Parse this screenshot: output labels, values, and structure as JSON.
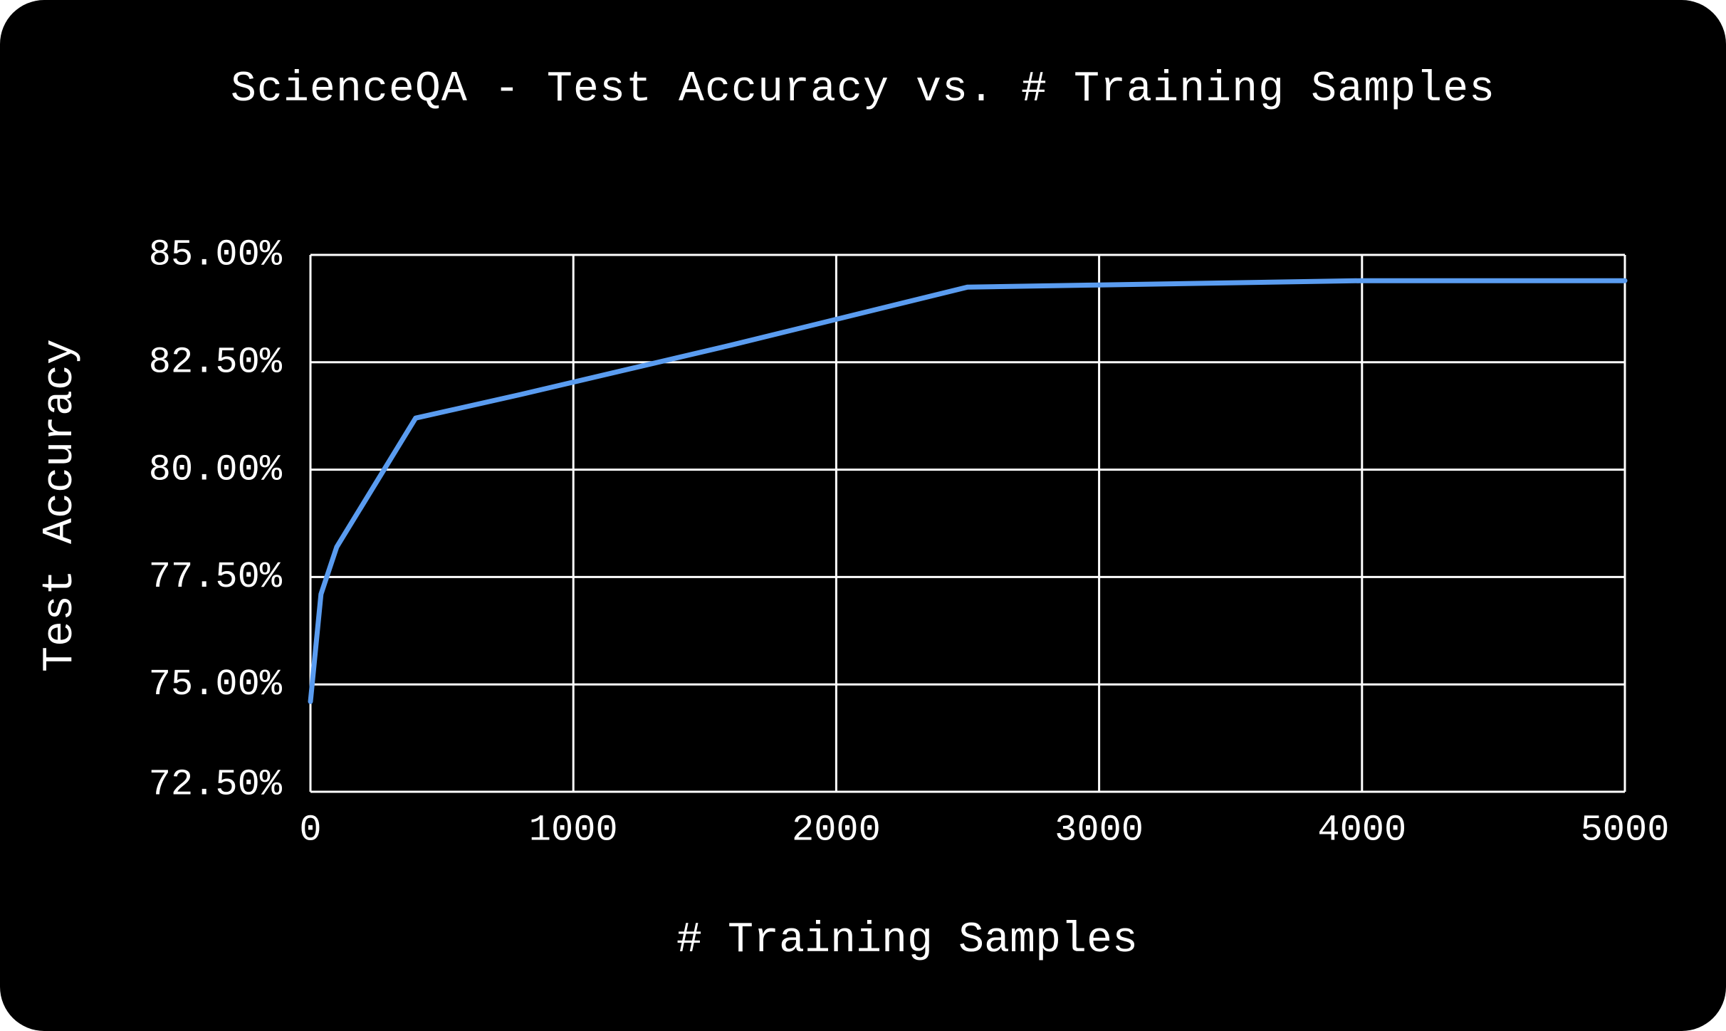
{
  "chart_data": {
    "type": "line",
    "title": "ScienceQA - Test Accuracy vs. # Training Samples",
    "xlabel": "# Training Samples",
    "ylabel": "Test Accuracy",
    "xlim": [
      0,
      5000
    ],
    "ylim": [
      72.5,
      85.0
    ],
    "x_ticks": [
      0,
      1000,
      2000,
      3000,
      4000,
      5000
    ],
    "x_tick_labels": [
      "0",
      "1000",
      "2000",
      "3000",
      "4000",
      "5000"
    ],
    "y_ticks": [
      85.0,
      82.5,
      80.0,
      77.5,
      75.0,
      72.5
    ],
    "y_tick_labels": [
      "85.00%",
      "82.50%",
      "80.00%",
      "77.50%",
      "75.00%",
      "72.50%"
    ],
    "grid": true,
    "line_color": "#5a9cf0",
    "grid_color": "#ffffff",
    "background": "#000000",
    "series": [
      {
        "x": [
          0,
          40,
          100,
          400,
          800,
          1600,
          2500,
          3000,
          4000,
          5000
        ],
        "y": [
          74.6,
          77.1,
          78.2,
          81.2,
          81.75,
          82.9,
          84.25,
          84.3,
          84.4,
          84.4
        ]
      }
    ]
  }
}
